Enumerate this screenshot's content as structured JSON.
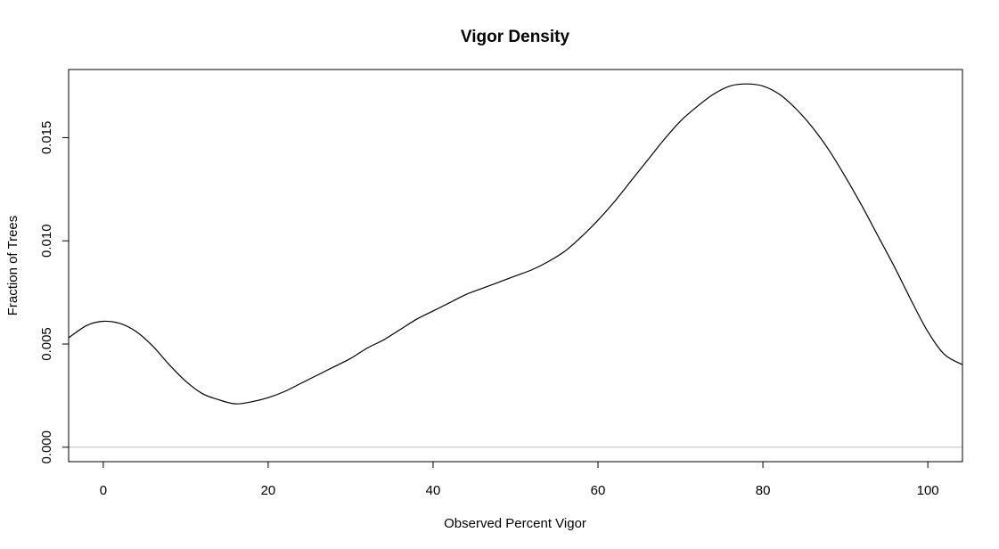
{
  "chart_data": {
    "type": "line",
    "title": "Vigor Density",
    "xlabel": "Observed Percent Vigor",
    "ylabel": "Fraction of Trees",
    "xlim": [
      -4.2,
      104.2
    ],
    "ylim": [
      -0.0007,
      0.0183
    ],
    "x_ticks": [
      0,
      20,
      40,
      60,
      80,
      100
    ],
    "x_tick_labels": [
      "0",
      "20",
      "40",
      "60",
      "80",
      "100"
    ],
    "y_ticks": [
      0.0,
      0.005,
      0.01,
      0.015
    ],
    "y_tick_labels": [
      "0.000",
      "0.005",
      "0.010",
      "0.015"
    ],
    "baseline": 0.0,
    "grid": false,
    "colors": {
      "line": "#000000",
      "baseline": "#bebebe",
      "frame": "#000000"
    },
    "series": [
      {
        "x": [
          -4.2,
          -2,
          0,
          2,
          4,
          6,
          8,
          10,
          12,
          14,
          16,
          18,
          20,
          22,
          24,
          26,
          28,
          30,
          32,
          34,
          36,
          38,
          40,
          42,
          44,
          46,
          48,
          50,
          52,
          54,
          56,
          58,
          60,
          62,
          64,
          66,
          68,
          70,
          72,
          74,
          76,
          78,
          80,
          82,
          84,
          86,
          88,
          90,
          92,
          94,
          96,
          98,
          100,
          102,
          104.2
        ],
        "y": [
          0.0053,
          0.0059,
          0.0061,
          0.006,
          0.0056,
          0.0049,
          0.004,
          0.0032,
          0.0026,
          0.0023,
          0.0021,
          0.0022,
          0.0024,
          0.0027,
          0.0031,
          0.0035,
          0.0039,
          0.0043,
          0.0048,
          0.0052,
          0.0057,
          0.0062,
          0.0066,
          0.007,
          0.0074,
          0.0077,
          0.008,
          0.0083,
          0.0086,
          0.009,
          0.0095,
          0.0102,
          0.011,
          0.0119,
          0.0129,
          0.0139,
          0.0149,
          0.0158,
          0.0165,
          0.0171,
          0.0175,
          0.0176,
          0.0175,
          0.0171,
          0.0164,
          0.0155,
          0.0144,
          0.0131,
          0.0117,
          0.0102,
          0.0087,
          0.0071,
          0.0056,
          0.0045,
          0.004
        ]
      }
    ]
  }
}
